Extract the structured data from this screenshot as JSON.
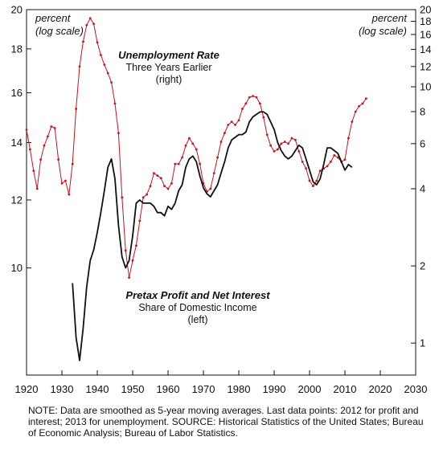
{
  "chart_data": {
    "type": "line",
    "x_range": [
      1920,
      2030
    ],
    "x_ticks": [
      1920,
      1930,
      1940,
      1950,
      1960,
      1970,
      1980,
      1990,
      2000,
      2010,
      2020,
      2030
    ],
    "left_axis": {
      "unit_line1": "percent",
      "unit_line2": "(log scale)",
      "scale": "log",
      "range": [
        7.5,
        20
      ],
      "ticks": [
        10,
        12,
        14,
        16,
        18,
        20
      ]
    },
    "right_axis": {
      "unit_line1": "percent",
      "unit_line2": "(log scale)",
      "scale": "log",
      "range": [
        0.75,
        20
      ],
      "ticks": [
        1,
        2,
        4,
        6,
        8,
        10,
        12,
        14,
        16,
        18,
        20
      ]
    },
    "grid": false,
    "series": [
      {
        "name": "Unemployment Rate",
        "subtitle_line1": "Three Years Earlier",
        "subtitle_line2": "(right)",
        "axis": "right",
        "color": "#c8141e",
        "markers": true,
        "x": [
          1920,
          1921,
          1922,
          1923,
          1924,
          1925,
          1926,
          1927,
          1928,
          1929,
          1930,
          1931,
          1932,
          1933,
          1934,
          1935,
          1936,
          1937,
          1938,
          1939,
          1940,
          1941,
          1942,
          1943,
          1944,
          1945,
          1946,
          1947,
          1948,
          1949,
          1950,
          1951,
          1952,
          1953,
          1954,
          1955,
          1956,
          1957,
          1958,
          1959,
          1960,
          1961,
          1962,
          1963,
          1964,
          1965,
          1966,
          1967,
          1968,
          1969,
          1970,
          1971,
          1972,
          1973,
          1974,
          1975,
          1976,
          1977,
          1978,
          1979,
          1980,
          1981,
          1982,
          1983,
          1984,
          1985,
          1986,
          1987,
          1988,
          1989,
          1990,
          1991,
          1992,
          1993,
          1994,
          1995,
          1996,
          1997,
          1998,
          1999,
          2000,
          2001,
          2002,
          2003,
          2004,
          2005,
          2006,
          2007,
          2008,
          2009,
          2010,
          2011,
          2012,
          2013,
          2014,
          2015,
          2016
        ],
        "values": [
          6.8,
          5.7,
          4.7,
          4.0,
          5.2,
          5.9,
          6.4,
          7.0,
          6.9,
          5.2,
          4.2,
          4.3,
          3.8,
          5.0,
          8.2,
          12.0,
          15.0,
          17.4,
          18.5,
          17.6,
          14.9,
          13.3,
          12.2,
          11.3,
          10.4,
          8.6,
          6.6,
          3.7,
          2.3,
          1.8,
          2.1,
          2.4,
          3.0,
          3.7,
          3.8,
          4.1,
          4.6,
          4.5,
          4.4,
          4.1,
          4.0,
          4.2,
          5.0,
          5.0,
          5.3,
          5.9,
          6.3,
          6.0,
          5.7,
          5.0,
          4.2,
          3.9,
          4.0,
          4.6,
          5.3,
          6.1,
          6.6,
          7.1,
          7.3,
          7.1,
          7.4,
          8.2,
          8.6,
          9.1,
          9.2,
          9.1,
          8.6,
          7.6,
          6.5,
          5.9,
          5.6,
          5.7,
          6.0,
          6.1,
          6.0,
          6.3,
          6.2,
          5.6,
          5.1,
          4.8,
          4.3,
          4.1,
          4.3,
          4.7,
          4.8,
          4.9,
          5.1,
          5.4,
          5.3,
          5.1,
          5.2,
          6.3,
          7.3,
          8.0,
          8.4,
          8.6,
          9.0
        ]
      },
      {
        "name": "Pretax Profit and Net Interest",
        "subtitle_line1": "Share of Domestic Income",
        "subtitle_line2": "(left)",
        "axis": "left",
        "color": "#111111",
        "markers": false,
        "x": [
          1933,
          1934,
          1935,
          1936,
          1937,
          1938,
          1939,
          1940,
          1941,
          1942,
          1943,
          1944,
          1945,
          1946,
          1947,
          1948,
          1949,
          1950,
          1951,
          1952,
          1953,
          1954,
          1955,
          1956,
          1957,
          1958,
          1959,
          1960,
          1961,
          1962,
          1963,
          1964,
          1965,
          1966,
          1967,
          1968,
          1969,
          1970,
          1971,
          1972,
          1973,
          1974,
          1975,
          1976,
          1977,
          1978,
          1979,
          1980,
          1981,
          1982,
          1983,
          1984,
          1985,
          1986,
          1987,
          1988,
          1989,
          1990,
          1991,
          1992,
          1993,
          1994,
          1995,
          1996,
          1997,
          1998,
          1999,
          2000,
          2001,
          2002,
          2003,
          2004,
          2005,
          2006,
          2007,
          2008,
          2009,
          2010,
          2011,
          2012
        ],
        "values": [
          9.6,
          8.3,
          7.8,
          8.5,
          9.5,
          10.2,
          10.5,
          11.0,
          11.6,
          12.3,
          13.1,
          13.4,
          12.7,
          11.2,
          10.3,
          10.0,
          10.2,
          10.9,
          11.9,
          12.0,
          11.9,
          11.9,
          11.9,
          11.8,
          11.6,
          11.6,
          11.5,
          11.8,
          11.7,
          11.9,
          12.3,
          12.5,
          13.1,
          13.4,
          13.5,
          13.3,
          12.8,
          12.4,
          12.2,
          12.1,
          12.3,
          12.5,
          12.9,
          13.3,
          13.8,
          14.1,
          14.2,
          14.3,
          14.3,
          14.4,
          14.8,
          15.0,
          15.1,
          15.2,
          15.2,
          15.1,
          14.8,
          14.5,
          14.0,
          13.7,
          13.5,
          13.4,
          13.5,
          13.7,
          13.9,
          13.8,
          13.4,
          13.0,
          12.6,
          12.5,
          12.7,
          13.2,
          13.8,
          13.8,
          13.7,
          13.6,
          13.3,
          13.0,
          13.2,
          13.1
        ]
      }
    ]
  },
  "note": "NOTE: Data are smoothed as 5-year moving averages. Last data points: 2012 for profit and interest; 2013 for unemployment. SOURCE: Historical Statistics of the United States; Bureau of Economic Analysis; Bureau of Labor Statistics."
}
